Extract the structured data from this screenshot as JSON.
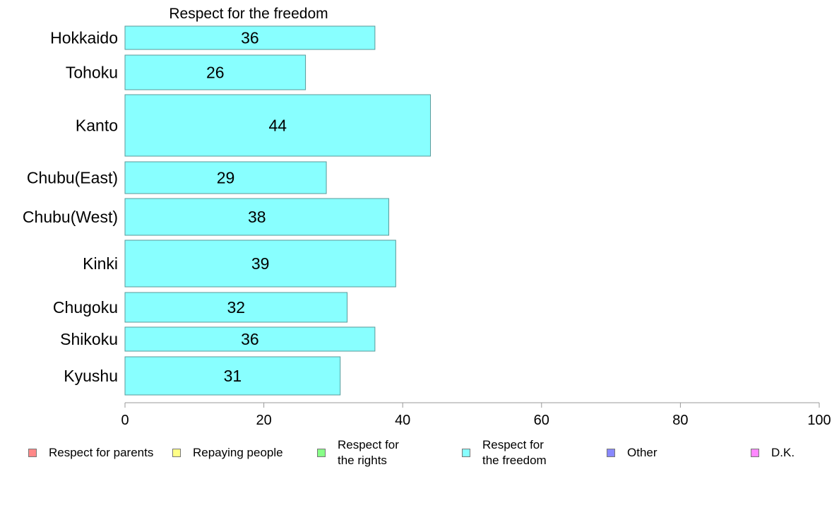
{
  "chart_data": {
    "type": "bar",
    "orientation": "horizontal",
    "title": "Respect for the freedom",
    "categories": [
      "Hokkaido",
      "Tohoku",
      "Kanto",
      "Chubu(East)",
      "Chubu(West)",
      "Kinki",
      "Chugoku",
      "Shikoku",
      "Kyushu"
    ],
    "series": [
      {
        "name": "Respect for the freedom",
        "values": [
          36,
          26,
          44,
          29,
          38,
          39,
          32,
          36,
          31
        ]
      }
    ],
    "data_labels": [
      "36",
      "26",
      "44",
      "29",
      "38",
      "39",
      "32",
      "36",
      "31"
    ],
    "xlim": [
      0,
      100
    ],
    "xticks": [
      0,
      20,
      40,
      60,
      80,
      100
    ],
    "xtick_labels": [
      "0",
      "20",
      "40",
      "60",
      "80",
      "100"
    ],
    "xlabel": "",
    "ylabel": "",
    "grid": false,
    "legend_position": "bottom",
    "bar_color": "#88ffff",
    "bar_border_color": "#5a9a9a"
  },
  "legend": [
    {
      "label": "Respect for parents",
      "color": "#ff8888"
    },
    {
      "label": "Repaying people",
      "color": "#ffff88"
    },
    {
      "label": "Respect for\nthe rights",
      "color": "#88ff88"
    },
    {
      "label": "Respect for\nthe freedom",
      "color": "#88ffff"
    },
    {
      "label": "Other",
      "color": "#8888ff"
    },
    {
      "label": "D.K.",
      "color": "#ff88ff"
    }
  ]
}
